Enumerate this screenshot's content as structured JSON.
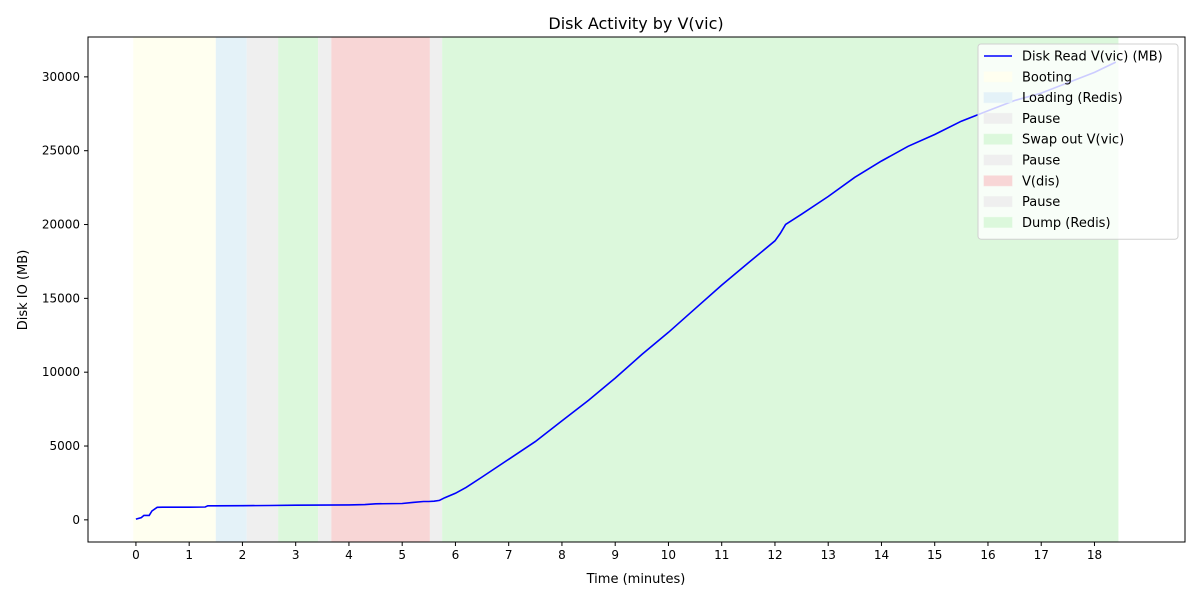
{
  "chart_data": {
    "type": "line",
    "title": "Disk Activity by V(vic)",
    "xlabel": "Time (minutes)",
    "ylabel": "Disk IO (MB)",
    "xlim": [
      -0.9,
      19.7
    ],
    "ylim": [
      -1500,
      32700
    ],
    "xticks": [
      0,
      1,
      2,
      3,
      4,
      5,
      6,
      7,
      8,
      9,
      10,
      11,
      12,
      13,
      14,
      15,
      16,
      17,
      18
    ],
    "yticks": [
      0,
      5000,
      10000,
      15000,
      20000,
      25000,
      30000
    ],
    "grid": false,
    "legend_position": "top-right",
    "series": [
      {
        "name": "Disk Read V(vic) (MB)",
        "color": "#0000ff",
        "x": [
          0,
          0.1,
          0.15,
          0.2,
          0.25,
          0.3,
          0.4,
          0.5,
          1.0,
          1.3,
          1.35,
          1.5,
          2.0,
          2.5,
          3.0,
          3.5,
          4.0,
          4.3,
          4.5,
          5.0,
          5.2,
          5.4,
          5.5,
          5.6,
          5.7,
          5.8,
          6.0,
          6.2,
          6.5,
          7.0,
          7.5,
          8.0,
          8.5,
          9.0,
          9.5,
          10.0,
          10.5,
          11.0,
          11.5,
          12.0,
          12.1,
          12.2,
          12.5,
          13.0,
          13.5,
          14.0,
          14.5,
          15.0,
          15.5,
          16.0,
          16.5,
          17.0,
          17.5,
          18.0,
          18.4
        ],
        "y": [
          50,
          150,
          300,
          300,
          300,
          600,
          850,
          860,
          860,
          870,
          950,
          950,
          960,
          970,
          990,
          1000,
          1010,
          1030,
          1090,
          1110,
          1180,
          1240,
          1240,
          1260,
          1320,
          1500,
          1800,
          2200,
          2900,
          4100,
          5300,
          6700,
          8100,
          9600,
          11200,
          12700,
          14300,
          15900,
          17400,
          18900,
          19400,
          20000,
          20700,
          21900,
          23200,
          24300,
          25300,
          26100,
          27000,
          27700,
          28400,
          28900,
          29600,
          30300,
          31000
        ]
      }
    ],
    "spans": [
      {
        "label": "Booting",
        "start": -0.05,
        "end": 1.5,
        "color": "#fffff0"
      },
      {
        "label": "Loading (Redis)",
        "start": 1.5,
        "end": 2.08,
        "color": "#e4f2f8"
      },
      {
        "label": "Pause",
        "start": 2.08,
        "end": 2.67,
        "color": "#efefef"
      },
      {
        "label": "Swap out V(vic)",
        "start": 2.67,
        "end": 3.42,
        "color": "#dcf8dc"
      },
      {
        "label": "Pause",
        "start": 3.42,
        "end": 3.67,
        "color": "#efefef"
      },
      {
        "label": "V(dis)",
        "start": 3.67,
        "end": 5.52,
        "color": "#f8d6d6"
      },
      {
        "label": "Pause",
        "start": 5.52,
        "end": 5.75,
        "color": "#efefef"
      },
      {
        "label": "Dump (Redis)",
        "start": 5.75,
        "end": 18.45,
        "color": "#dcf8dc"
      }
    ]
  }
}
